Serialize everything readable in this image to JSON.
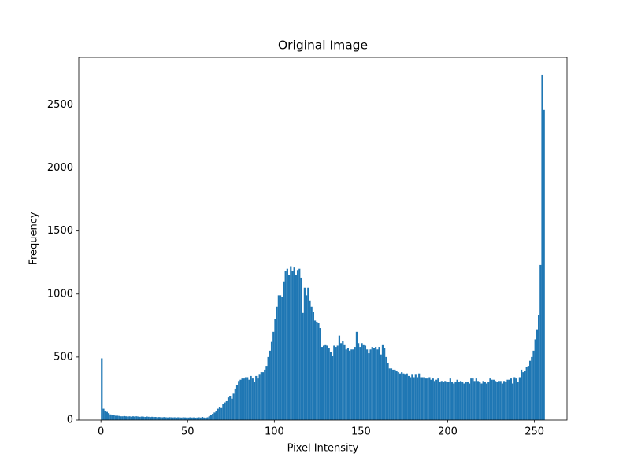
{
  "chart_data": {
    "type": "histogram",
    "title": "Original Image",
    "xlabel": "Pixel Intensity",
    "ylabel": "Frequency",
    "color": "#1f77b4",
    "grid": false,
    "bins": [
      0,
      1,
      2,
      3,
      4,
      5,
      6,
      7,
      8,
      9,
      10,
      11,
      12,
      13,
      14,
      15,
      16,
      17,
      18,
      19,
      20,
      21,
      22,
      23,
      24,
      25,
      26,
      27,
      28,
      29,
      30,
      31,
      32,
      33,
      34,
      35,
      36,
      37,
      38,
      39,
      40,
      41,
      42,
      43,
      44,
      45,
      46,
      47,
      48,
      49,
      50,
      51,
      52,
      53,
      54,
      55,
      56,
      57,
      58,
      59,
      60,
      61,
      62,
      63,
      64,
      65,
      66,
      67,
      68,
      69,
      70,
      71,
      72,
      73,
      74,
      75,
      76,
      77,
      78,
      79,
      80,
      81,
      82,
      83,
      84,
      85,
      86,
      87,
      88,
      89,
      90,
      91,
      92,
      93,
      94,
      95,
      96,
      97,
      98,
      99,
      100,
      101,
      102,
      103,
      104,
      105,
      106,
      107,
      108,
      109,
      110,
      111,
      112,
      113,
      114,
      115,
      116,
      117,
      118,
      119,
      120,
      121,
      122,
      123,
      124,
      125,
      126,
      127,
      128,
      129,
      130,
      131,
      132,
      133,
      134,
      135,
      136,
      137,
      138,
      139,
      140,
      141,
      142,
      143,
      144,
      145,
      146,
      147,
      148,
      149,
      150,
      151,
      152,
      153,
      154,
      155,
      156,
      157,
      158,
      159,
      160,
      161,
      162,
      163,
      164,
      165,
      166,
      167,
      168,
      169,
      170,
      171,
      172,
      173,
      174,
      175,
      176,
      177,
      178,
      179,
      180,
      181,
      182,
      183,
      184,
      185,
      186,
      187,
      188,
      189,
      190,
      191,
      192,
      193,
      194,
      195,
      196,
      197,
      198,
      199,
      200,
      201,
      202,
      203,
      204,
      205,
      206,
      207,
      208,
      209,
      210,
      211,
      212,
      213,
      214,
      215,
      216,
      217,
      218,
      219,
      220,
      221,
      222,
      223,
      224,
      225,
      226,
      227,
      228,
      229,
      230,
      231,
      232,
      233,
      234,
      235,
      236,
      237,
      238,
      239,
      240,
      241,
      242,
      243,
      244,
      245,
      246,
      247,
      248,
      249,
      250,
      251,
      252,
      253,
      254,
      255,
      256
    ],
    "values": [
      490,
      90,
      75,
      65,
      55,
      45,
      40,
      38,
      35,
      35,
      33,
      30,
      30,
      32,
      30,
      28,
      30,
      27,
      30,
      28,
      30,
      28,
      26,
      28,
      27,
      25,
      28,
      26,
      24,
      26,
      24,
      25,
      22,
      24,
      23,
      22,
      24,
      22,
      21,
      23,
      22,
      21,
      22,
      20,
      22,
      21,
      20,
      22,
      21,
      20,
      20,
      22,
      20,
      21,
      19,
      20,
      22,
      20,
      25,
      20,
      18,
      22,
      30,
      40,
      50,
      60,
      70,
      90,
      100,
      95,
      130,
      140,
      150,
      180,
      190,
      170,
      210,
      250,
      280,
      310,
      320,
      330,
      330,
      340,
      340,
      320,
      350,
      330,
      300,
      350,
      330,
      360,
      380,
      380,
      400,
      430,
      500,
      550,
      620,
      700,
      800,
      900,
      990,
      990,
      980,
      1100,
      1180,
      1200,
      1150,
      1220,
      1180,
      1210,
      1150,
      1190,
      1200,
      1130,
      850,
      1050,
      990,
      1050,
      950,
      900,
      860,
      790,
      780,
      770,
      730,
      580,
      590,
      600,
      590,
      570,
      540,
      510,
      590,
      580,
      590,
      670,
      610,
      630,
      600,
      560,
      570,
      550,
      560,
      560,
      580,
      700,
      610,
      580,
      610,
      600,
      590,
      560,
      530,
      560,
      580,
      570,
      580,
      560,
      580,
      520,
      600,
      570,
      500,
      450,
      410,
      410,
      400,
      400,
      390,
      380,
      370,
      380,
      370,
      360,
      370,
      350,
      340,
      360,
      340,
      360,
      340,
      370,
      340,
      340,
      340,
      330,
      330,
      340,
      320,
      330,
      310,
      320,
      330,
      300,
      310,
      300,
      310,
      300,
      300,
      330,
      300,
      290,
      300,
      320,
      300,
      310,
      300,
      290,
      300,
      300,
      290,
      330,
      330,
      310,
      330,
      310,
      300,
      290,
      310,
      300,
      290,
      300,
      330,
      320,
      320,
      310,
      300,
      310,
      310,
      290,
      310,
      300,
      320,
      320,
      330,
      290,
      340,
      330,
      300,
      340,
      400,
      380,
      390,
      420,
      430,
      470,
      500,
      550,
      640,
      720,
      830,
      1230,
      2740,
      2460
    ],
    "xlim": [
      -12.8,
      268.8
    ],
    "xticks": [
      0,
      50,
      100,
      150,
      200,
      250
    ],
    "ylim": [
      0,
      2877
    ],
    "yticks": [
      0,
      500,
      1000,
      1500,
      2000,
      2500
    ]
  }
}
